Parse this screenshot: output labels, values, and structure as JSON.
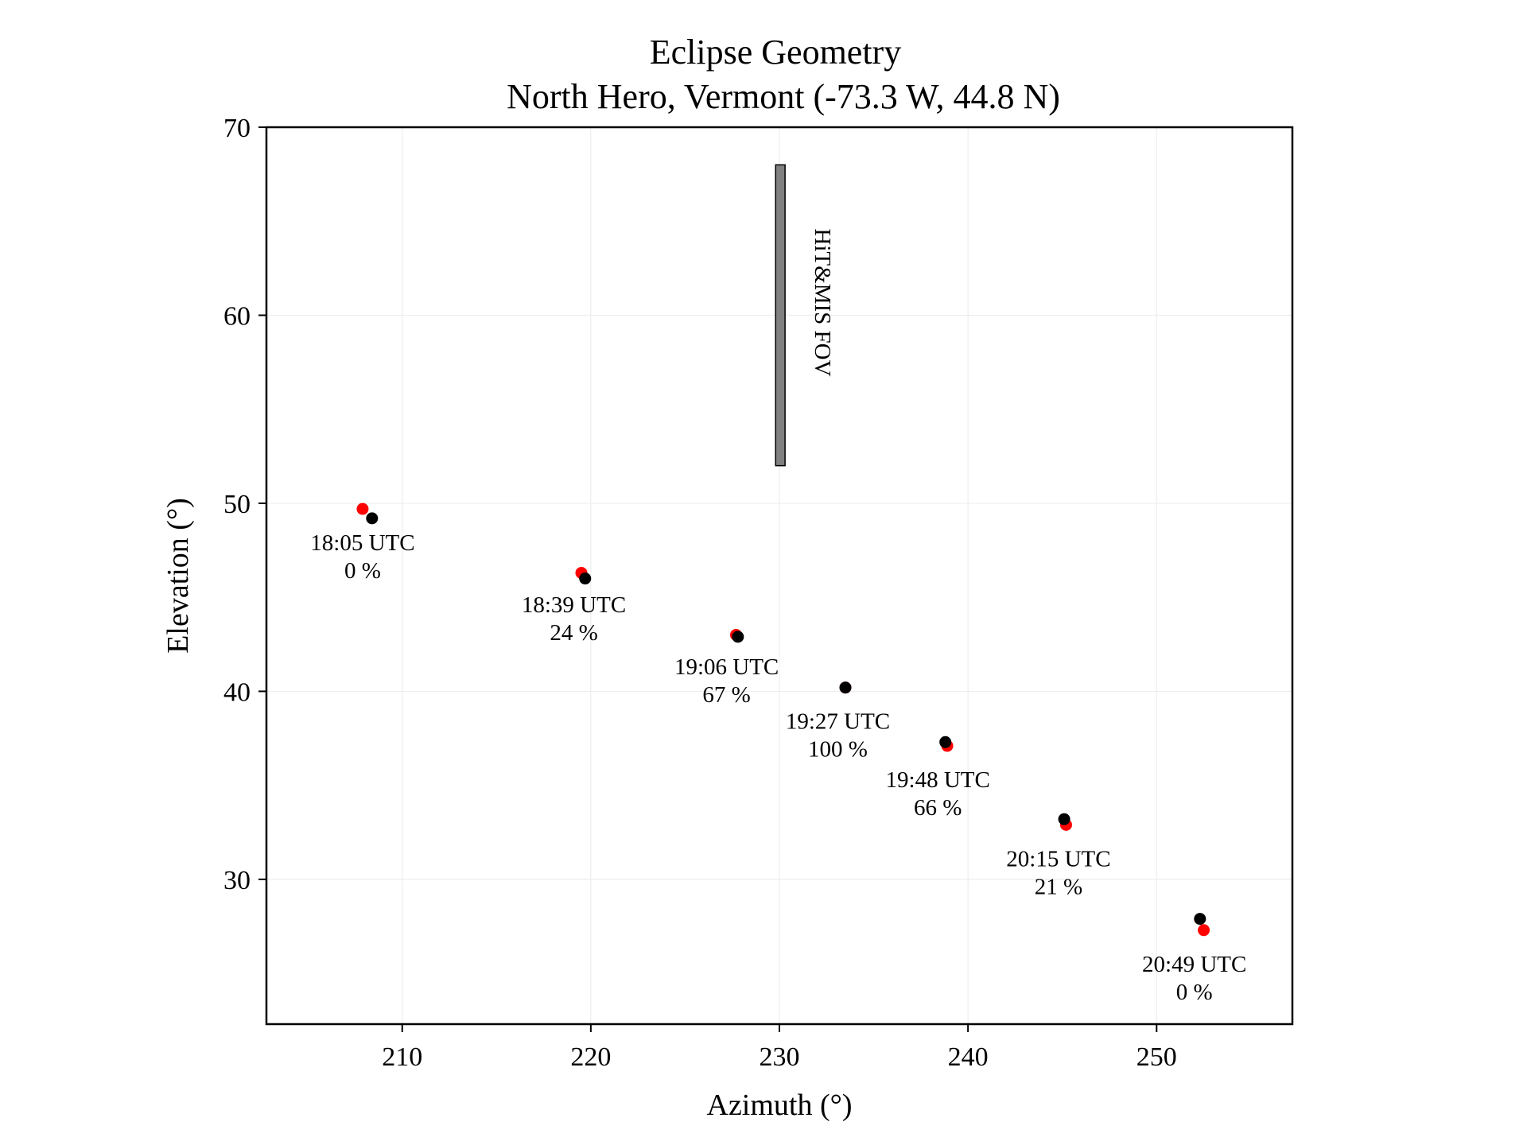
{
  "chart_data": {
    "type": "scatter",
    "title": "Eclipse Geometry",
    "subtitle": "North Hero, Vermont (-73.3 W, 44.8 N)",
    "xlabel": "Azimuth (°)",
    "ylabel": "Elevation (°)",
    "xlim": [
      202.8,
      257.2
    ],
    "ylim": [
      22.3,
      70
    ],
    "xticks": [
      210,
      220,
      230,
      240,
      250
    ],
    "yticks": [
      30,
      40,
      50,
      60,
      70
    ],
    "grid": true,
    "colors": {
      "red_series": "#ff0000",
      "black_series": "#000000",
      "fov_fill": "#808080"
    },
    "series": [
      {
        "color": "red",
        "x": [
          207.9,
          219.5,
          227.7,
          233.5,
          238.9,
          245.2,
          252.5
        ],
        "y": [
          49.7,
          46.3,
          43.0,
          40.2,
          37.1,
          32.9,
          27.3
        ]
      },
      {
        "color": "black",
        "x": [
          208.4,
          219.7,
          227.8,
          233.5,
          238.8,
          245.1,
          252.3
        ],
        "y": [
          49.2,
          46.0,
          42.9,
          40.2,
          37.3,
          33.2,
          27.9
        ]
      }
    ],
    "annotations": [
      {
        "time": "18:05 UTC",
        "percent": "0 %",
        "x": 207.9,
        "y": 47.5
      },
      {
        "time": "18:39 UTC",
        "percent": "24 %",
        "x": 219.1,
        "y": 44.2
      },
      {
        "time": "19:06 UTC",
        "percent": "67 %",
        "x": 227.2,
        "y": 40.9
      },
      {
        "time": "19:27 UTC",
        "percent": "100 %",
        "x": 233.1,
        "y": 38.0
      },
      {
        "time": "19:48 UTC",
        "percent": "66 %",
        "x": 238.4,
        "y": 34.9
      },
      {
        "time": "20:15 UTC",
        "percent": "21 %",
        "x": 244.8,
        "y": 30.7
      },
      {
        "time": "20:49 UTC",
        "percent": "0 %",
        "x": 252.0,
        "y": 25.1
      }
    ],
    "fov": {
      "label": "HiT&MIS FOV",
      "x_min": 229.8,
      "x_max": 230.3,
      "y_min": 52,
      "y_max": 68
    }
  }
}
